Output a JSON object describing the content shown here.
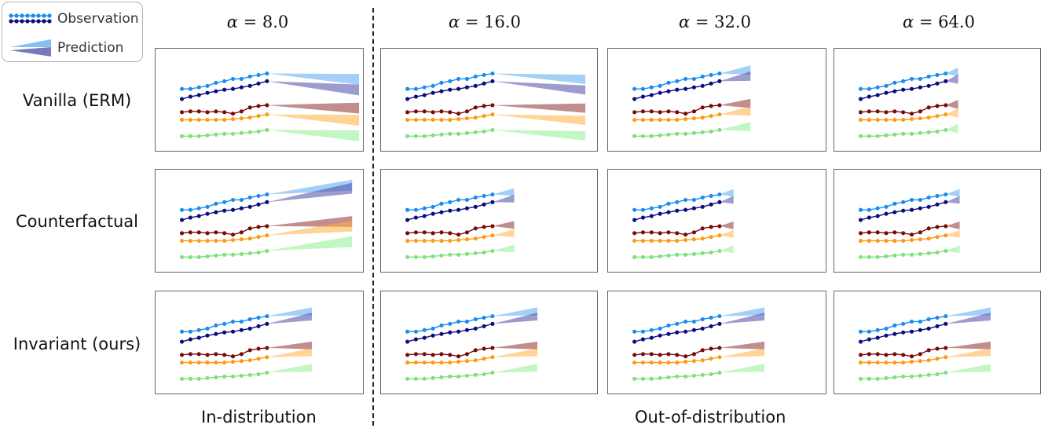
{
  "legend": {
    "observation_label": "Observation",
    "prediction_label": "Prediction"
  },
  "columns": [
    {
      "symbol": "α",
      "eq": " = 8.0"
    },
    {
      "symbol": "α",
      "eq": " = 16.0"
    },
    {
      "symbol": "α",
      "eq": " = 32.0"
    },
    {
      "symbol": "α",
      "eq": " = 64.0"
    }
  ],
  "rows": [
    {
      "label": "Vanilla (ERM)"
    },
    {
      "label": "Counterfactual"
    },
    {
      "label": "Invariant (ours)"
    }
  ],
  "bottom_labels": {
    "in_distribution": "In-distribution",
    "out_of_distribution": "Out-of-distribution"
  },
  "colors": {
    "blue": "#1a8cf0",
    "navy": "#0b0b80",
    "maroon": "#7a0a0a",
    "orange": "#ff9a10",
    "green": "#7ee07e",
    "blue_pred": "#5aaaf2",
    "navy_pred": "#4b4ba8",
    "maroon_pred": "#8e2f2f",
    "orange_pred": "#ffb040",
    "green_pred": "#90ee90"
  }
}
